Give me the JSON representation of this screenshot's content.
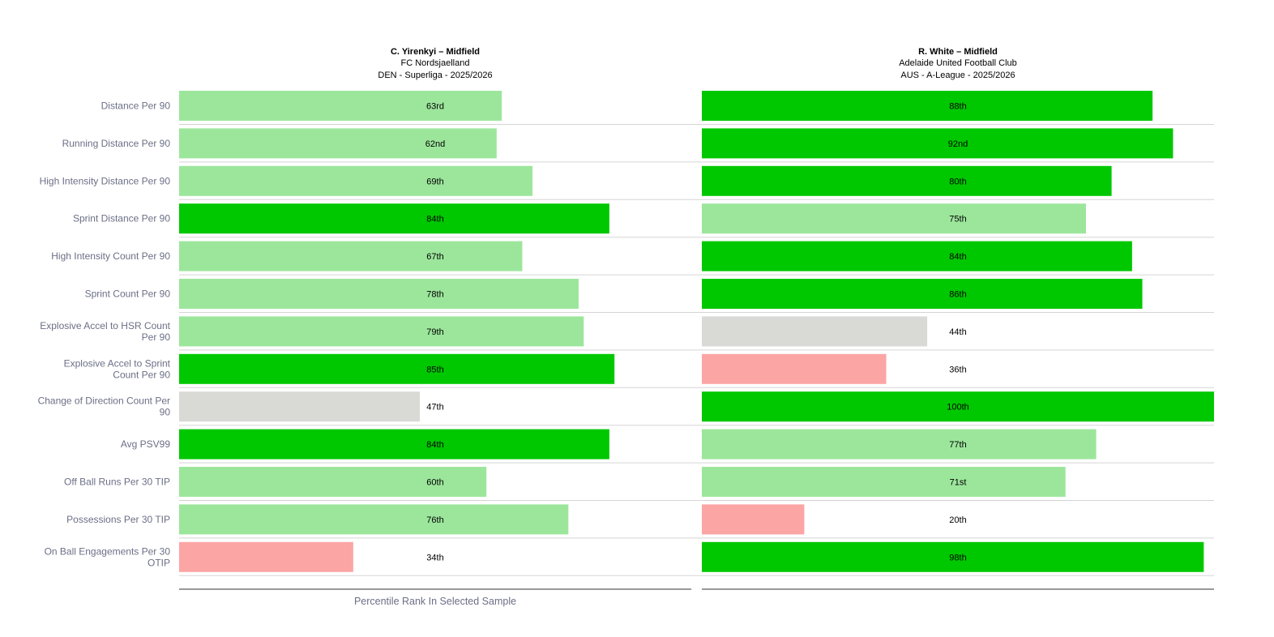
{
  "chart_data": {
    "type": "bar",
    "orientation": "horizontal",
    "xlabel": "Percentile Rank In Selected Sample",
    "xlim": [
      0,
      100
    ],
    "grid": false,
    "categories": [
      [
        "Distance Per 90"
      ],
      [
        "Running Distance Per 90"
      ],
      [
        "High Intensity Distance Per 90"
      ],
      [
        "Sprint Distance Per 90"
      ],
      [
        "High Intensity Count Per 90"
      ],
      [
        "Sprint Count Per 90"
      ],
      [
        "Explosive Accel to HSR Count",
        "Per 90"
      ],
      [
        "Explosive Accel to Sprint",
        "Count Per 90"
      ],
      [
        "Change of Direction Count Per",
        "90"
      ],
      [
        "Avg PSV99"
      ],
      [
        "Off Ball Runs Per 30 TIP"
      ],
      [
        "Possessions Per 30 TIP"
      ],
      [
        "On Ball Engagements Per 30",
        "OTIP"
      ]
    ],
    "series": [
      {
        "name": "C. Yirenkyi – Midfield",
        "team": "FC Nordsjaelland",
        "competition": "DEN - Superliga - 2025/2026",
        "values": [
          63,
          62,
          69,
          84,
          67,
          78,
          79,
          85,
          47,
          84,
          60,
          76,
          34
        ],
        "labels": [
          "63rd",
          "62nd",
          "69th",
          "84th",
          "67th",
          "78th",
          "79th",
          "85th",
          "47th",
          "84th",
          "60th",
          "76th",
          "34th"
        ]
      },
      {
        "name": "R. White – Midfield",
        "team": "Adelaide United Football Club",
        "competition": "AUS - A-League - 2025/2026",
        "values": [
          88,
          92,
          80,
          75,
          84,
          86,
          44,
          36,
          100,
          77,
          71,
          20,
          98
        ],
        "labels": [
          "88th",
          "92nd",
          "80th",
          "75th",
          "84th",
          "86th",
          "44th",
          "36th",
          "100th",
          "77th",
          "71st",
          "20th",
          "98th"
        ]
      }
    ],
    "color_scale": {
      "elite": "#00c800",
      "above_average": "#9ce69c",
      "average": "#d9dad6",
      "below_average": "#fca5a5"
    }
  },
  "colors": {
    "row_divider": "#d5d5d5",
    "axis_line": "#333333"
  }
}
